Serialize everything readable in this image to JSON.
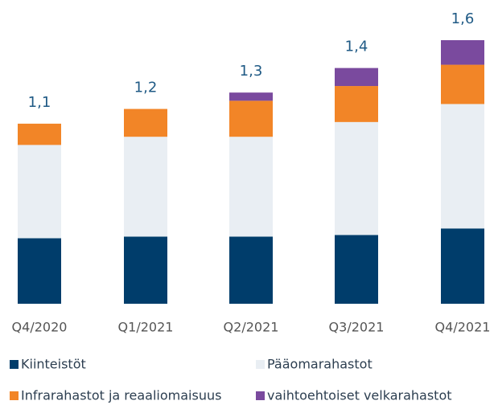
{
  "chart_data": {
    "type": "stacked_bar",
    "categories": [
      "Q4/2020",
      "Q1/2021",
      "Q2/2021",
      "Q3/2021",
      "Q4/2021"
    ],
    "series": [
      {
        "name": "Kiinteistöt",
        "color": "#003d6b",
        "values": [
          0.4,
          0.41,
          0.41,
          0.42,
          0.46
        ]
      },
      {
        "name": "Pääomarahastot",
        "color": "#e9eef3",
        "values": [
          0.57,
          0.61,
          0.61,
          0.69,
          0.76
        ]
      },
      {
        "name": "Infrarahastot ja reaaliomaisuus",
        "color": "#f28527",
        "values": [
          0.13,
          0.17,
          0.22,
          0.22,
          0.24
        ]
      },
      {
        "name": "vaihtoehtoiset velkarahastot",
        "color": "#7a4a9e",
        "values": [
          0,
          0,
          0.05,
          0.11,
          0.15
        ]
      }
    ],
    "totals": {
      "values": [
        1.1,
        1.2,
        1.3,
        1.4,
        1.6
      ],
      "value_labels": [
        "1,1",
        "1,2",
        "1,3",
        "1,4",
        "1,6"
      ]
    }
  }
}
